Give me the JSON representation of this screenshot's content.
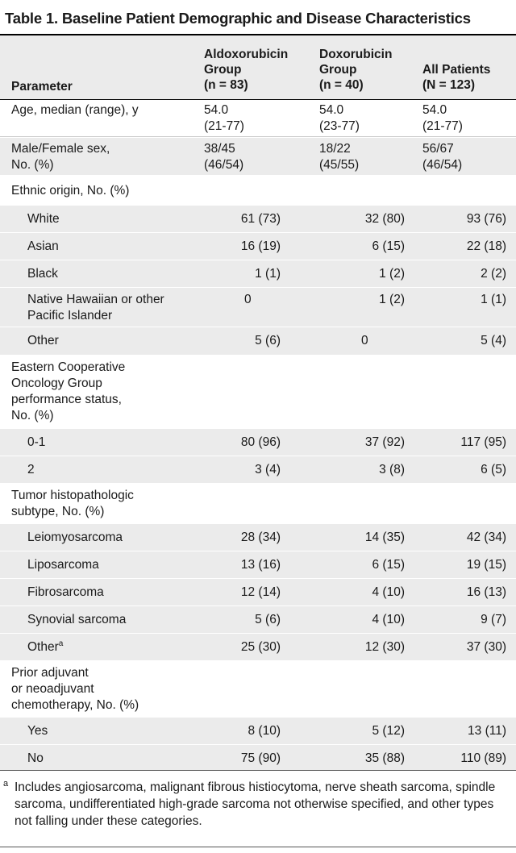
{
  "title": "Table 1. Baseline Patient Demographic and Disease Characteristics",
  "headers": {
    "parameter": "Parameter",
    "col1": "Aldoxorubicin\nGroup\n(n = 83)",
    "col2": "Doxorubicin\nGroup\n(n = 40)",
    "col3": "All Patients\n(N = 123)"
  },
  "rows": {
    "age": {
      "label": "Age, median (range), y",
      "v1": "54.0\n(21-77)",
      "v2": "54.0\n(23-77)",
      "v3": "54.0\n(21-77)"
    },
    "sex": {
      "label": "Male/Female sex,\nNo. (%)",
      "v1": "38/45\n(46/54)",
      "v2": "18/22\n(45/55)",
      "v3": "56/67\n(46/54)"
    },
    "ethnic": {
      "label": "Ethnic origin, No. (%)"
    },
    "white": {
      "label": "White",
      "v1": "61 (73)",
      "v2": "32 (80)",
      "v3": "93 (76)"
    },
    "asian": {
      "label": "Asian",
      "v1": "16 (19)",
      "v2": "6 (15)",
      "v3": "22 (18)"
    },
    "black": {
      "label": "Black",
      "v1": "1 (1)",
      "v2": "1 (2)",
      "v3": "2 (2)"
    },
    "hawaiian": {
      "label": "Native Hawaiian or other\nPacific Islander",
      "v1": "0",
      "v2": "1 (2)",
      "v3": "1 (1)"
    },
    "other_eth": {
      "label": "Other",
      "v1": "5 (6)",
      "v2": "0",
      "v3": "5 (4)"
    },
    "ecog": {
      "label": "Eastern Cooperative\nOncology Group\nperformance status,\nNo. (%)"
    },
    "ecog01": {
      "label": "0-1",
      "v1": "80 (96)",
      "v2": "37 (92)",
      "v3": "117 (95)"
    },
    "ecog2": {
      "label": "2",
      "v1": "3 (4)",
      "v2": "3 (8)",
      "v3": "6 (5)"
    },
    "tumor": {
      "label": "Tumor histopathologic\nsubtype, No. (%)"
    },
    "leio": {
      "label": "Leiomyosarcoma",
      "v1": "28 (34)",
      "v2": "14 (35)",
      "v3": "42 (34)"
    },
    "lipo": {
      "label": "Liposarcoma",
      "v1": "13 (16)",
      "v2": "6 (15)",
      "v3": "19 (15)"
    },
    "fibro": {
      "label": "Fibrosarcoma",
      "v1": "12 (14)",
      "v2": "4 (10)",
      "v3": "16 (13)"
    },
    "syno": {
      "label": "Synovial sarcoma",
      "v1": "5 (6)",
      "v2": "4 (10)",
      "v3": "9 (7)"
    },
    "other_tum": {
      "label": "Other",
      "sup": "a",
      "v1": "25 (30)",
      "v2": "12 (30)",
      "v3": "37 (30)"
    },
    "prior": {
      "label": "Prior adjuvant\nor neoadjuvant\nchemotherapy, No. (%)"
    },
    "yes": {
      "label": "Yes",
      "v1": "8 (10)",
      "v2": "5 (12)",
      "v3": "13 (11)"
    },
    "no": {
      "label": "No",
      "v1": "75 (90)",
      "v2": "35 (88)",
      "v3": "110 (89)"
    }
  },
  "footnote": {
    "mark": "a",
    "text": "Includes angiosarcoma, malignant fibrous histiocytoma, nerve sheath sarcoma, spindle sarcoma, undifferentiated high-grade sarcoma not otherwise specified, and other types not falling under these categories."
  }
}
